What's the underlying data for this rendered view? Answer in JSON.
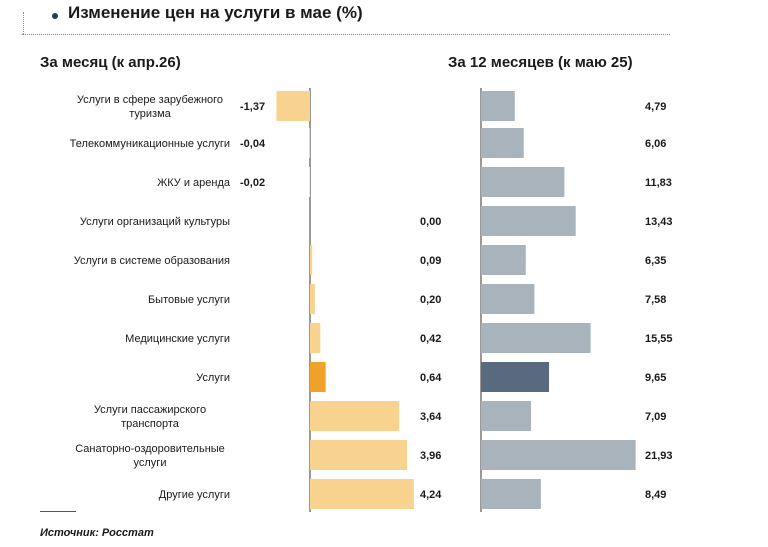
{
  "title": "Изменение цен на услуги в мае (%)",
  "source": "Источник: Росстат",
  "colors": {
    "monthly": "#f7d38f",
    "monthly_highlight": "#f0a127",
    "annual": "#a8b3bb",
    "annual_highlight": "#5a6a7e"
  },
  "chart_data": [
    {
      "type": "bar",
      "orientation": "horizontal",
      "title": "За месяц (к апр.26)",
      "categories": [
        "Услуги в сфере зарубежного туризма",
        "Телекоммуникационные услуги",
        "ЖКУ и аренда",
        "Услуги организаций культуры",
        "Услуги в системе образования",
        "Бытовые услуги",
        "Медицинские услуги",
        "Услуги",
        "Услуги пассажирского транспорта",
        "Санаторно-оздоровительные услуги",
        "Другие услуги"
      ],
      "values": [
        -1.37,
        -0.04,
        -0.02,
        0.0,
        0.09,
        0.2,
        0.42,
        0.64,
        3.64,
        3.96,
        4.24
      ],
      "labels": [
        "-1,37",
        "-0,04",
        "-0,02",
        "0,00",
        "0,09",
        "0,20",
        "0,42",
        "0,64",
        "3,64",
        "3,96",
        "4,24"
      ],
      "highlight_index": 7
    },
    {
      "type": "bar",
      "orientation": "horizontal",
      "title": "За 12 месяцев (к маю 25)",
      "categories": [
        "Услуги в сфере зарубежного туризма",
        "Телекоммуникационные услуги",
        "ЖКУ и аренда",
        "Услуги организаций культуры",
        "Услуги в системе образования",
        "Бытовые услуги",
        "Медицинские услуги",
        "Услуги",
        "Услуги пассажирского транспорта",
        "Санаторно-оздоровительные услуги",
        "Другие услуги"
      ],
      "values": [
        4.79,
        6.06,
        11.83,
        13.43,
        6.35,
        7.58,
        15.55,
        9.65,
        7.09,
        21.93,
        8.49
      ],
      "labels": [
        "4,79",
        "6,06",
        "11,83",
        "13,43",
        "6,35",
        "7,58",
        "15,55",
        "9,65",
        "7,09",
        "21,93",
        "8,49"
      ],
      "highlight_index": 7
    }
  ]
}
